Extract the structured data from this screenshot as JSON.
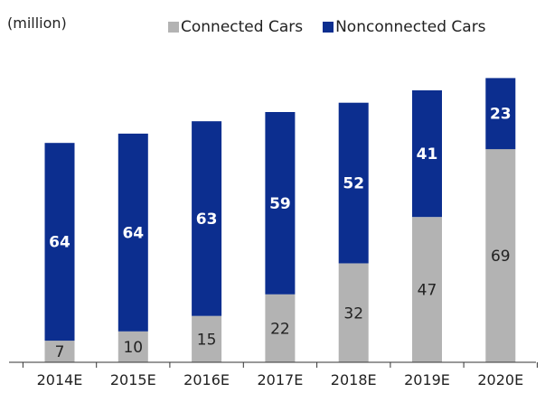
{
  "chart_data": {
    "type": "bar",
    "stacked": true,
    "title": "",
    "unit": "(million)",
    "xlabel": "",
    "ylabel": "",
    "ylim": [
      0,
      100
    ],
    "grid": false,
    "legend_position": "top",
    "categories": [
      "2014E",
      "2015E",
      "2016E",
      "2017E",
      "2018E",
      "2019E",
      "2020E"
    ],
    "series": [
      {
        "name": "Connected Cars",
        "color": "#b3b3b3",
        "label_color": "#222222",
        "values": [
          7,
          10,
          15,
          22,
          32,
          47,
          69
        ]
      },
      {
        "name": "Nonconnected Cars",
        "color": "#0c2e8f",
        "label_color": "#ffffff",
        "values": [
          64,
          64,
          63,
          59,
          52,
          41,
          23
        ]
      }
    ]
  }
}
